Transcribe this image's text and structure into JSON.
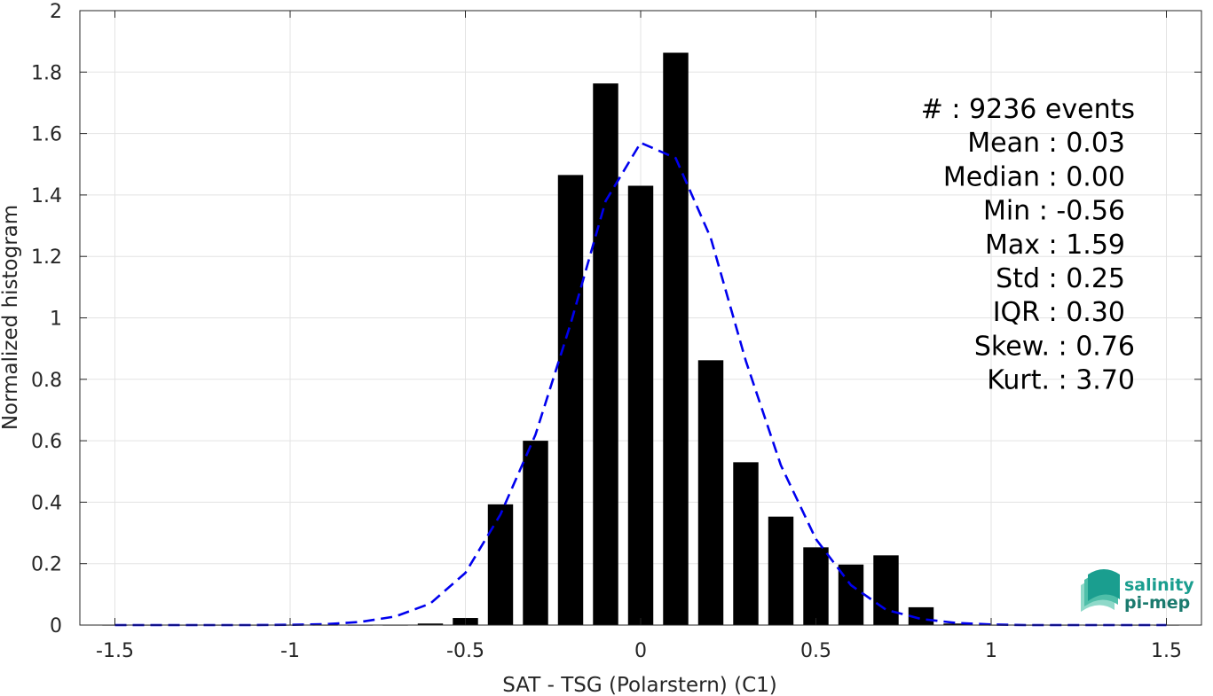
{
  "chart_data": {
    "type": "bar",
    "xlabel": "SAT - TSG (Polarstern) (C1)",
    "ylabel": "Normalized histogram",
    "xlim": [
      -1.6,
      1.6
    ],
    "ylim": [
      0,
      2
    ],
    "xticks": [
      -1.5,
      -1,
      -0.5,
      0,
      0.5,
      1,
      1.5
    ],
    "xtick_labels": [
      "-1.5",
      "-1",
      "-0.5",
      "0",
      "0.5",
      "1",
      "1.5"
    ],
    "yticks": [
      0,
      0.2,
      0.4,
      0.6,
      0.8,
      1,
      1.2,
      1.4,
      1.6,
      1.8,
      2
    ],
    "ytick_labels": [
      "0",
      "0.2",
      "0.4",
      "0.6",
      "0.8",
      "1",
      "1.2",
      "1.4",
      "1.6",
      "1.8",
      "2"
    ],
    "grid": true,
    "bar_width": 0.072,
    "bars": {
      "x": [
        -1.5,
        -1.4,
        -1.3,
        -1.2,
        -1.1,
        -1.0,
        -0.9,
        -0.8,
        -0.7,
        -0.6,
        -0.5,
        -0.4,
        -0.3,
        -0.2,
        -0.1,
        0.0,
        0.1,
        0.2,
        0.3,
        0.4,
        0.5,
        0.6,
        0.7,
        0.8,
        0.9,
        1.0,
        1.1,
        1.2,
        1.3,
        1.4,
        1.5
      ],
      "values": [
        0,
        0,
        0,
        0,
        0,
        0,
        0,
        0,
        0,
        0.005,
        0.023,
        0.393,
        0.6,
        1.465,
        1.763,
        1.43,
        1.863,
        0.862,
        0.53,
        0.353,
        0.253,
        0.197,
        0.227,
        0.058,
        0.005,
        0,
        0,
        0,
        0,
        0,
        0
      ],
      "color": "#000000"
    },
    "fit_curve": {
      "style": "dashed",
      "color": "#0000ee",
      "x": [
        -1.5,
        -1.4,
        -1.3,
        -1.2,
        -1.1,
        -1.0,
        -0.9,
        -0.8,
        -0.7,
        -0.6,
        -0.5,
        -0.4,
        -0.3,
        -0.2,
        -0.1,
        0.0,
        0.1,
        0.2,
        0.3,
        0.4,
        0.5,
        0.6,
        0.7,
        0.8,
        0.9,
        1.0,
        1.1,
        1.2,
        1.3,
        1.4,
        1.5
      ],
      "y": [
        0,
        0,
        0,
        0,
        0,
        0.001,
        0.003,
        0.01,
        0.028,
        0.07,
        0.17,
        0.36,
        0.62,
        0.98,
        1.38,
        1.57,
        1.52,
        1.26,
        0.86,
        0.52,
        0.28,
        0.13,
        0.05,
        0.02,
        0.007,
        0.002,
        0,
        0,
        0,
        0,
        0
      ]
    },
    "stats": [
      "#  : 9236 events",
      "Mean : 0.03",
      "Median : 0.00",
      "Min : -0.56",
      "Max : 1.59",
      "Std : 0.25",
      "IQR : 0.30",
      "Skew. : 0.76",
      "Kurt. : 3.70"
    ]
  },
  "logo": {
    "line1": "salinity",
    "line2": "pi-mep",
    "color": "#1a9e8f"
  }
}
